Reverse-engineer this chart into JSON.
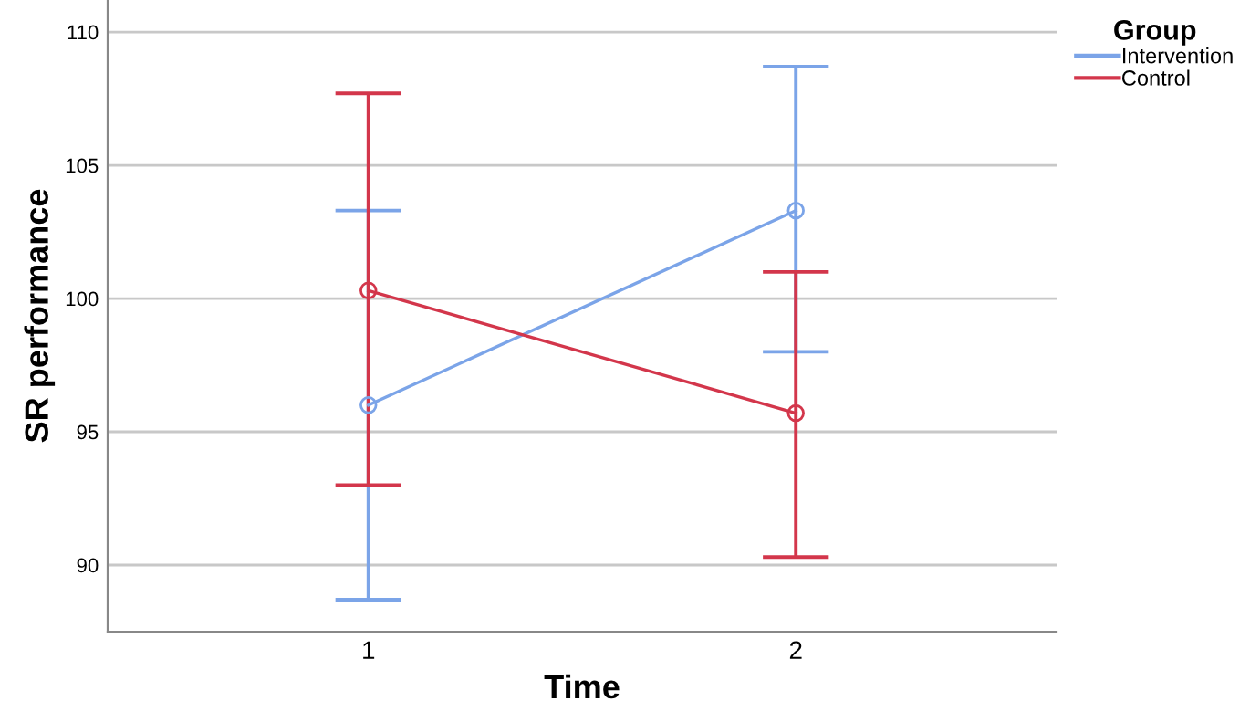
{
  "chart_data": {
    "type": "line",
    "xlabel": "Time",
    "ylabel": "SR performance",
    "legend_title": "Group",
    "categories": [
      "1",
      "2"
    ],
    "series": [
      {
        "name": "Intervention",
        "color": "#7ba4e8",
        "values": [
          96.0,
          103.3
        ],
        "errors": [
          [
            88.7,
            103.3
          ],
          [
            98.0,
            108.7
          ]
        ]
      },
      {
        "name": "Control",
        "color": "#d3364b",
        "values": [
          100.3,
          95.7
        ],
        "errors": [
          [
            93.0,
            107.7
          ],
          [
            90.3,
            101.0
          ]
        ]
      }
    ],
    "ylim": [
      87.5,
      111.2
    ],
    "yticks": [
      90,
      95,
      100,
      105,
      110
    ],
    "grid": "y",
    "legend": "top right",
    "marker": "circle",
    "line_style": "solid"
  }
}
